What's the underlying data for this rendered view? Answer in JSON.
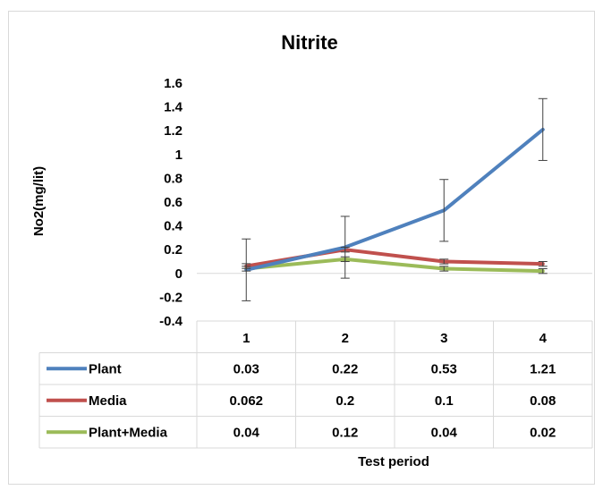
{
  "chart_data": {
    "type": "line",
    "title": "Nitrite",
    "xlabel": "Test period",
    "ylabel": "No2(mg/lit)",
    "categories": [
      "1",
      "2",
      "3",
      "4"
    ],
    "ylim": [
      -0.4,
      1.6
    ],
    "yticks": [
      "-0.4",
      "-0.2",
      "0",
      "0.2",
      "0.4",
      "0.6",
      "0.8",
      "1",
      "1.2",
      "1.4",
      "1.6"
    ],
    "grid": false,
    "legend": "data-table",
    "error_bar": 0.26,
    "series": [
      {
        "name": "Plant",
        "color": "#4f81bd",
        "values": [
          0.03,
          0.22,
          0.53,
          1.21
        ],
        "labels": [
          "0.03",
          "0.22",
          "0.53",
          "1.21"
        ]
      },
      {
        "name": "Media",
        "color": "#c0504d",
        "values": [
          0.062,
          0.2,
          0.1,
          0.08
        ],
        "labels": [
          "0.062",
          "0.2",
          "0.1",
          "0.08"
        ]
      },
      {
        "name": "Plant+Media",
        "color": "#9bbb59",
        "values": [
          0.04,
          0.12,
          0.04,
          0.02
        ],
        "labels": [
          "0.04",
          "0.12",
          "0.04",
          "0.02"
        ]
      }
    ]
  }
}
